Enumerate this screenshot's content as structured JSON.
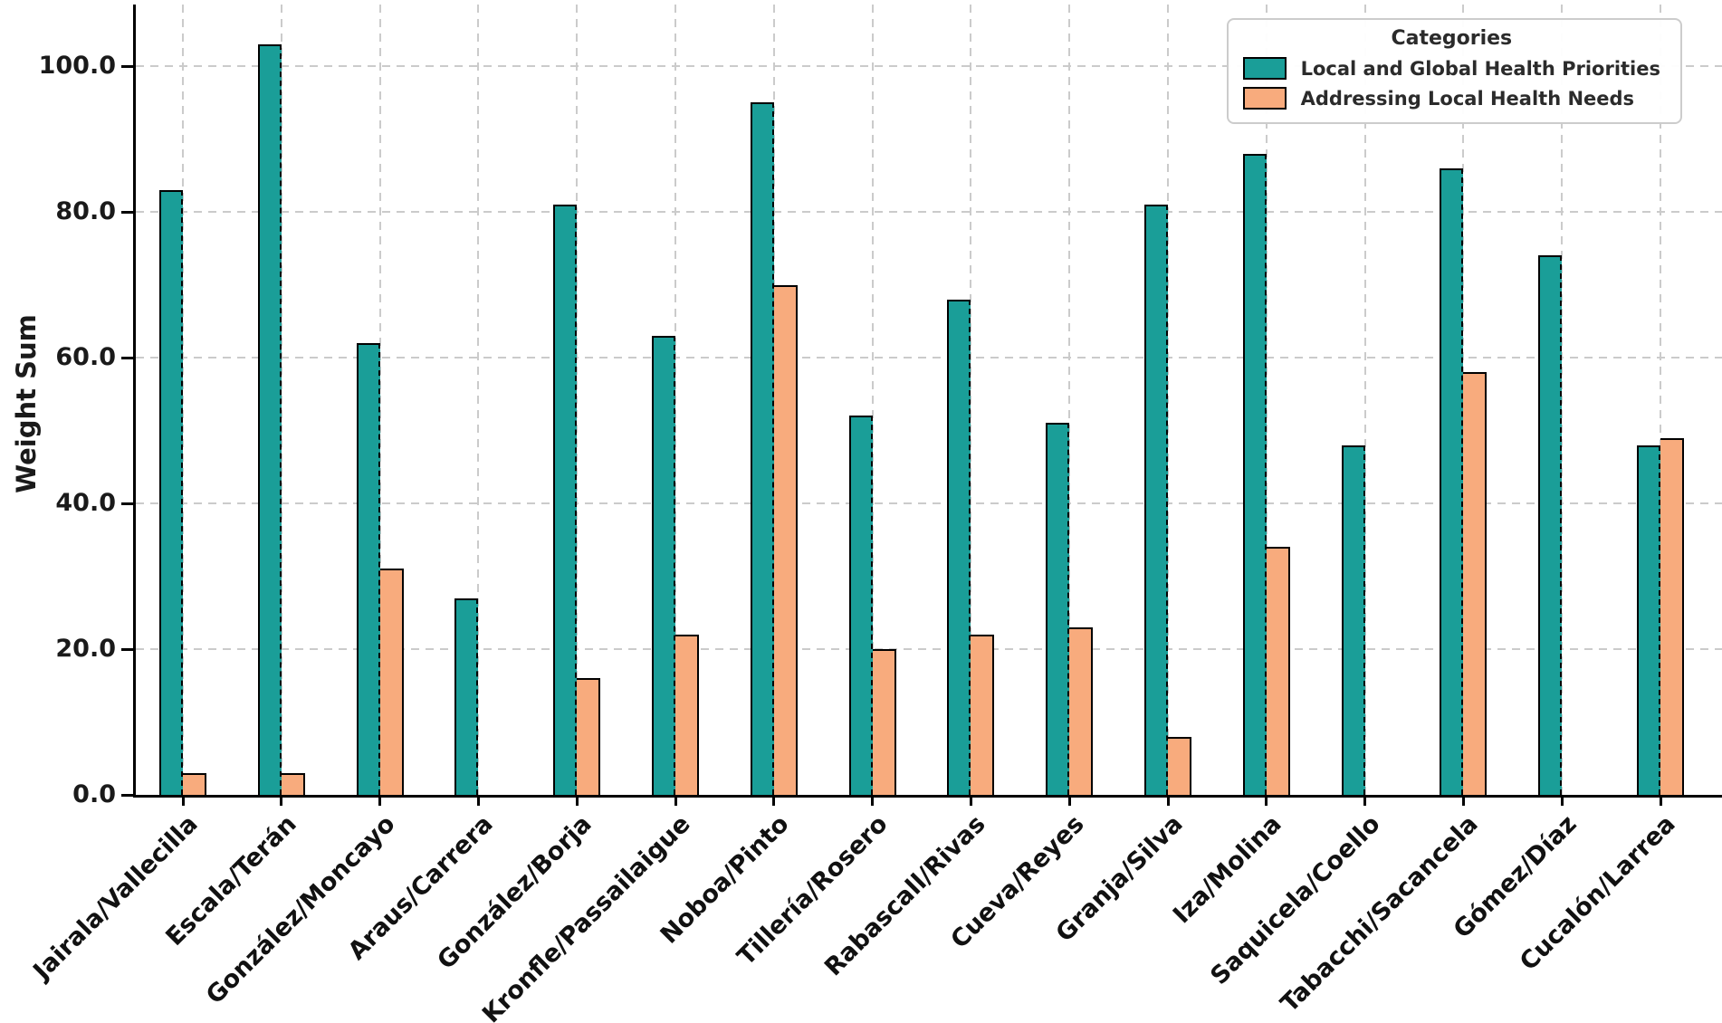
{
  "chart_data": {
    "type": "bar",
    "title": "",
    "ylabel": "Weight Sum",
    "xlabel": "",
    "legend_title": "Categories",
    "legend_position": "upper right",
    "grid": "dashed",
    "ylim": [
      0,
      108.4
    ],
    "y_ticks": [
      "0.0",
      "20.0",
      "40.0",
      "60.0",
      "80.0",
      "100.0"
    ],
    "categories": [
      "Jairala/Vallecilla",
      "Escala/Terán",
      "González/Moncayo",
      "Araus/Carrera",
      "González/Borja",
      "Kronfle/Passailaigue",
      "Noboa/Pinto",
      "Tillería/Rosero",
      "Rabascall/Rivas",
      "Cueva/Reyes",
      "Granja/Silva",
      "Iza/Molina",
      "Saquicela/Coello",
      "Tabacchi/Sacancela",
      "Gómez/Díaz",
      "Cucalón/Larrea"
    ],
    "series": [
      {
        "name": "Local and Global Health Priorities",
        "color": "#1A9E98",
        "values": [
          83,
          103,
          62,
          27,
          81,
          63,
          95,
          52,
          68,
          51,
          81,
          88,
          48,
          86,
          74,
          48
        ]
      },
      {
        "name": "Addressing Local Health Needs",
        "color": "#F8AB7D",
        "values": [
          3,
          3,
          31,
          0,
          16,
          22,
          70,
          20,
          22,
          23,
          8,
          34,
          0,
          58,
          0,
          49
        ]
      }
    ],
    "colors": {
      "bar_edge": "#000000",
      "gridline": "#cbcbcb",
      "text": "#1a1a1a",
      "background": "#ffffff"
    }
  }
}
